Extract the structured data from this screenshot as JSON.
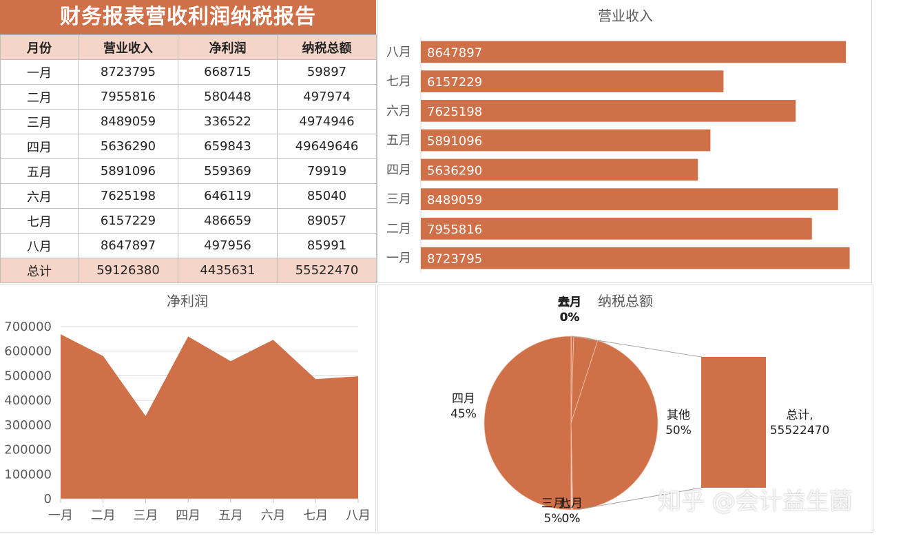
{
  "report": {
    "title": "财务报表营收利润纳税报告",
    "headers": [
      "月份",
      "营业收入",
      "净利润",
      "纳税总额"
    ],
    "rows": [
      [
        "一月",
        "8723795",
        "668715",
        "59897"
      ],
      [
        "二月",
        "7955816",
        "580448",
        "497974"
      ],
      [
        "三月",
        "8489059",
        "336522",
        "4974946"
      ],
      [
        "四月",
        "5636290",
        "659843",
        "49649646"
      ],
      [
        "五月",
        "5891096",
        "559369",
        "79919"
      ],
      [
        "六月",
        "7625198",
        "646119",
        "85040"
      ],
      [
        "七月",
        "6157229",
        "486659",
        "89057"
      ],
      [
        "八月",
        "8647897",
        "497956",
        "85991"
      ]
    ],
    "total": [
      "总计",
      "59126380",
      "4435631",
      "55522470"
    ]
  },
  "watermark": "知乎 @会计益生菌",
  "accent_color": "#D07048",
  "chart_data": [
    {
      "type": "bar",
      "orientation": "horizontal",
      "title": "营业收入",
      "categories": [
        "一月",
        "二月",
        "三月",
        "四月",
        "五月",
        "六月",
        "七月",
        "八月"
      ],
      "values": [
        8723795,
        7955816,
        8489059,
        5636290,
        5891096,
        7625198,
        6157229,
        8647897
      ],
      "xlim": [
        0,
        8800000
      ],
      "data_labels": true,
      "color": "#D07048"
    },
    {
      "type": "area",
      "title": "净利润",
      "categories": [
        "一月",
        "二月",
        "三月",
        "四月",
        "五月",
        "六月",
        "七月",
        "八月"
      ],
      "values": [
        668715,
        580448,
        336522,
        659843,
        559369,
        646119,
        486659,
        497956
      ],
      "ylim": [
        0,
        700000
      ],
      "yticks": [
        0,
        100000,
        200000,
        300000,
        400000,
        500000,
        600000,
        700000
      ],
      "grid": true,
      "color": "#D07048"
    },
    {
      "type": "pie",
      "subtype": "pie-of-bar",
      "title": "纳税总额",
      "slices": [
        {
          "name": "一月",
          "value": 59897,
          "label": "一月\n0%"
        },
        {
          "name": "二月",
          "value": 497974,
          "label": "二月\n0%"
        },
        {
          "name": "三月",
          "value": 4974946,
          "label": "三月\n5%"
        },
        {
          "name": "四月",
          "value": 49649646,
          "label": "四月\n45%"
        },
        {
          "name": "五月",
          "value": 79919,
          "label": "五月\n0%"
        },
        {
          "name": "六月",
          "value": 85040,
          "label": "六月\n0%"
        },
        {
          "name": "七月",
          "value": 89057,
          "label": "七月\n0%"
        },
        {
          "name": "八月",
          "value": 85991,
          "label": "八月\n0%"
        },
        {
          "name": "其他",
          "value": 55522470,
          "label": "其他\n50%"
        }
      ],
      "secondary_bar": {
        "name": "总计",
        "value": 55522470,
        "label": "总计,\n55522470"
      },
      "color": "#D07048"
    }
  ]
}
